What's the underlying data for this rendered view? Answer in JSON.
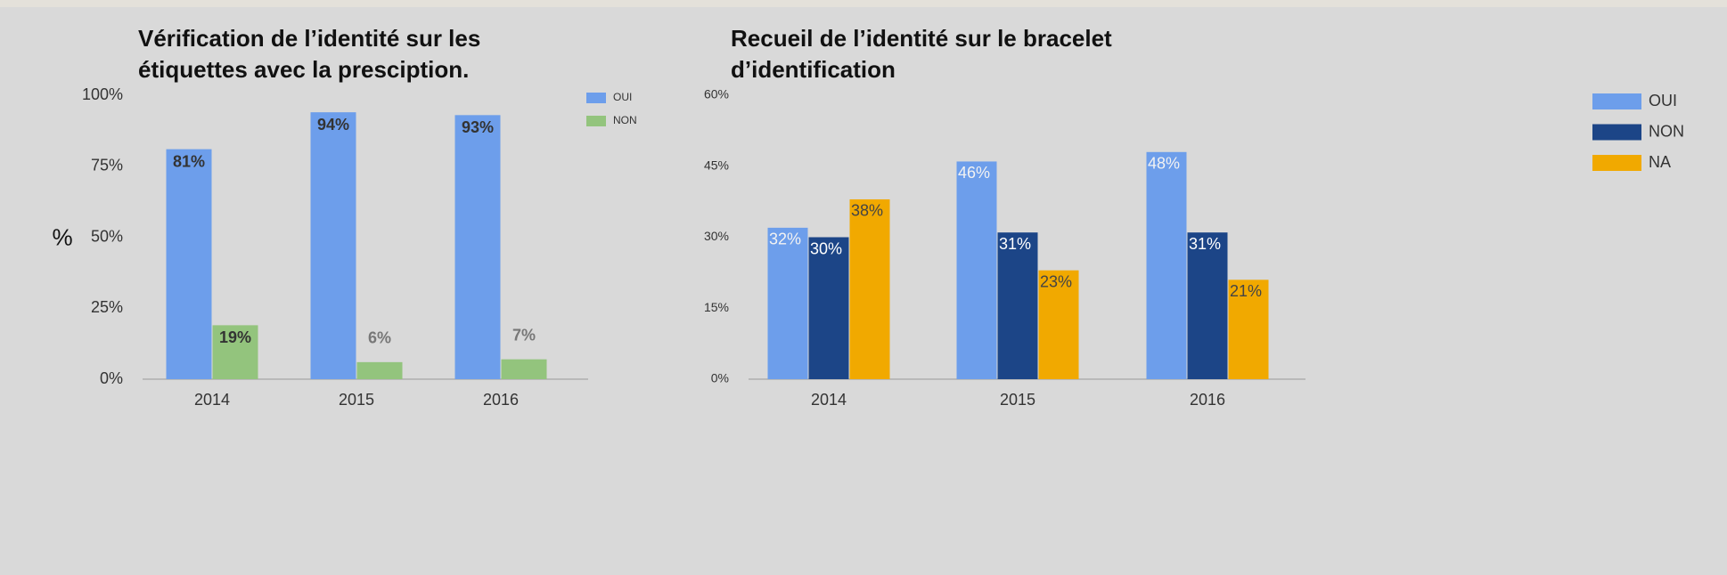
{
  "chart_data": [
    {
      "type": "bar",
      "title": [
        "Vérification de l’identité sur les",
        "étiquettes avec la presciption."
      ],
      "ylabel": "%",
      "categories": [
        "2014",
        "2015",
        "2016"
      ],
      "ylim": [
        0,
        100
      ],
      "yticks": [
        {
          "value": 0,
          "label": "0%"
        },
        {
          "value": 25,
          "label": "25%"
        },
        {
          "value": 50,
          "label": "50%"
        },
        {
          "value": 75,
          "label": "75%"
        },
        {
          "value": 100,
          "label": "100%"
        }
      ],
      "legend": "top-right",
      "series": [
        {
          "name": "OUI",
          "color": "#6d9eeb",
          "values": [
            81,
            94,
            93
          ],
          "value_labels": [
            "81%",
            "94%",
            "93%"
          ]
        },
        {
          "name": "NON",
          "color": "#93c47d",
          "values": [
            19,
            6,
            7
          ],
          "value_labels": [
            "19%",
            "6%",
            "7%"
          ]
        }
      ]
    },
    {
      "type": "bar",
      "title": [
        "Recueil de l’identité sur le bracelet",
        "d’identification"
      ],
      "categories": [
        "2014",
        "2015",
        "2016"
      ],
      "ylim": [
        0,
        60
      ],
      "yticks": [
        {
          "value": 0,
          "label": "0%"
        },
        {
          "value": 15,
          "label": "15%"
        },
        {
          "value": 30,
          "label": "30%"
        },
        {
          "value": 45,
          "label": "45%"
        },
        {
          "value": 60,
          "label": "60%"
        }
      ],
      "legend": "top-right",
      "series": [
        {
          "name": "OUI",
          "color": "#6d9eeb",
          "values": [
            32,
            46,
            48
          ],
          "value_labels": [
            "32%",
            "46%",
            "48%"
          ]
        },
        {
          "name": "NON",
          "color": "#1c4587",
          "values": [
            30,
            31,
            31
          ],
          "value_labels": [
            "30%",
            "31%",
            "31%"
          ]
        },
        {
          "name": "NA",
          "color": "#f1a900",
          "values": [
            38,
            23,
            21
          ],
          "value_labels": [
            "38%",
            "23%",
            "21%"
          ]
        }
      ]
    }
  ]
}
